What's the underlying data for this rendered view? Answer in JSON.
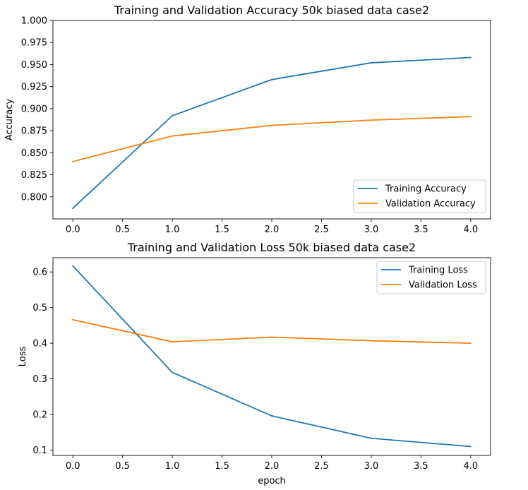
{
  "chart_data": [
    {
      "type": "line",
      "title": "Training and Validation Accuracy 50k biased data case2",
      "xlabel": "",
      "ylabel": "Accuracy",
      "xlim": [
        -0.2,
        4.2
      ],
      "ylim": [
        0.775,
        1.0
      ],
      "xticks": [
        0.0,
        0.5,
        1.0,
        1.5,
        2.0,
        2.5,
        3.0,
        3.5,
        4.0
      ],
      "xtick_labels": [
        "0.0",
        "0.5",
        "1.0",
        "1.5",
        "2.0",
        "2.5",
        "3.0",
        "3.5",
        "4.0"
      ],
      "yticks": [
        0.8,
        0.825,
        0.85,
        0.875,
        0.9,
        0.925,
        0.95,
        0.975,
        1.0
      ],
      "ytick_labels": [
        "0.800",
        "0.825",
        "0.850",
        "0.875",
        "0.900",
        "0.925",
        "0.950",
        "0.975",
        "1.000"
      ],
      "grid": false,
      "legend_position": "lower-right",
      "x": [
        0,
        1,
        2,
        3,
        4
      ],
      "series": [
        {
          "name": "Training Accuracy",
          "color": "#1f77b4",
          "values": [
            0.787,
            0.892,
            0.933,
            0.952,
            0.958
          ]
        },
        {
          "name": "Validation Accuracy",
          "color": "#ff7f0e",
          "values": [
            0.84,
            0.869,
            0.881,
            0.887,
            0.891
          ]
        }
      ]
    },
    {
      "type": "line",
      "title": "Training and Validation Loss 50k biased data case2",
      "xlabel": "epoch",
      "ylabel": "Loss",
      "xlim": [
        -0.2,
        4.2
      ],
      "ylim": [
        0.085,
        0.64
      ],
      "xticks": [
        0.0,
        0.5,
        1.0,
        1.5,
        2.0,
        2.5,
        3.0,
        3.5,
        4.0
      ],
      "xtick_labels": [
        "0.0",
        "0.5",
        "1.0",
        "1.5",
        "2.0",
        "2.5",
        "3.0",
        "3.5",
        "4.0"
      ],
      "yticks": [
        0.1,
        0.2,
        0.3,
        0.4,
        0.5,
        0.6
      ],
      "ytick_labels": [
        "0.1",
        "0.2",
        "0.3",
        "0.4",
        "0.5",
        "0.6"
      ],
      "grid": false,
      "legend_position": "upper-right",
      "x": [
        0,
        1,
        2,
        3,
        4
      ],
      "series": [
        {
          "name": "Training Loss",
          "color": "#1f77b4",
          "values": [
            0.617,
            0.318,
            0.196,
            0.133,
            0.11
          ]
        },
        {
          "name": "Validation Loss",
          "color": "#ff7f0e",
          "values": [
            0.466,
            0.404,
            0.417,
            0.407,
            0.4
          ]
        }
      ]
    }
  ]
}
